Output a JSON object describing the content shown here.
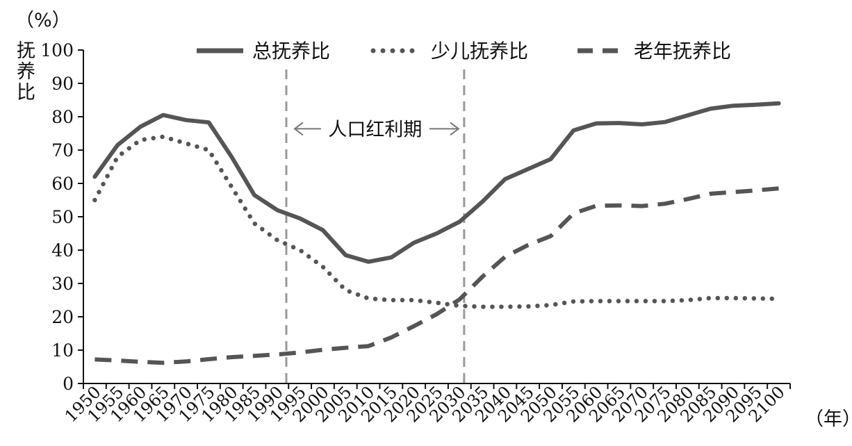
{
  "chart_data": {
    "type": "line",
    "y_unit_label": "（%）",
    "ylabel": "抚养比",
    "x_unit_label": "（年）",
    "ylim": [
      0,
      100
    ],
    "yticks": [
      0,
      10,
      20,
      30,
      40,
      50,
      60,
      70,
      80,
      90,
      100
    ],
    "x": [
      "1950",
      "1955",
      "1960",
      "1965",
      "1970",
      "1975",
      "1980",
      "1985",
      "1990",
      "1995",
      "2000",
      "2005",
      "2010",
      "2015",
      "2020",
      "2025",
      "2030",
      "2035",
      "2040",
      "2045",
      "2050",
      "2055",
      "2060",
      "2065",
      "2070",
      "2075",
      "2080",
      "2085",
      "2090",
      "2095",
      "2100"
    ],
    "grid": false,
    "legend_position": "top",
    "series": [
      {
        "name": "总抚养比",
        "style": "solid",
        "color": "#555555",
        "values": [
          62,
          71.5,
          77,
          80.5,
          79,
          78.3,
          68,
          56.5,
          52,
          49.5,
          46,
          38.5,
          36.5,
          37.8,
          42.2,
          45,
          48.5,
          54.5,
          61.3,
          64.3,
          67.3,
          75.9,
          78,
          78.1,
          77.7,
          78.4,
          80.4,
          82.4,
          83.3,
          83.6,
          84
        ]
      },
      {
        "name": "少儿抚养比",
        "style": "dotted",
        "color": "#555555",
        "values": [
          55,
          68,
          73,
          74,
          72,
          70,
          59,
          48,
          43,
          40,
          35,
          28,
          25.5,
          25,
          25,
          24.2,
          23.3,
          23,
          23,
          23.1,
          23.5,
          24.6,
          24.7,
          24.7,
          24.7,
          24.7,
          25,
          25.6,
          25.6,
          25.5,
          25.4
        ]
      },
      {
        "name": "老年抚养比",
        "style": "dashed",
        "color": "#555555",
        "values": [
          7.2,
          6.9,
          6.5,
          6.2,
          6.6,
          7.3,
          7.9,
          8.3,
          8.7,
          9.3,
          10.1,
          10.7,
          11.2,
          13.8,
          17.2,
          20.8,
          25.2,
          32,
          38,
          41.5,
          44.2,
          51,
          53.3,
          53.4,
          53.2,
          53.9,
          55.3,
          56.9,
          57.4,
          57.9,
          58.5
        ]
      }
    ],
    "annotation": {
      "text": "人口红利期",
      "start_year": 1992,
      "end_year": 2031,
      "y": 77
    }
  }
}
